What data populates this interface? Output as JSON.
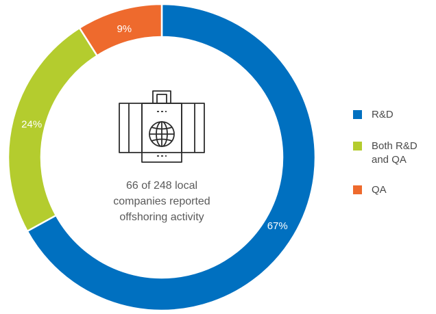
{
  "chart_data": {
    "type": "pie",
    "categories": [
      "R&D",
      "Both R&D and QA",
      "QA"
    ],
    "values": [
      67,
      24,
      9
    ],
    "labels": [
      "67%",
      "24%",
      "9%"
    ],
    "colors": [
      "#0070c0",
      "#b4cc2e",
      "#ee6a2d"
    ],
    "center_text": [
      "66 of 248 local",
      "companies reported",
      "offshoring activity"
    ],
    "center_icon": "briefcase-globe-icon",
    "legend": {
      "placement": "right",
      "items": [
        {
          "label": "R&D",
          "color": "#0070c0"
        },
        {
          "label": "Both R&D\nand QA",
          "color": "#b4cc2e"
        },
        {
          "label": "QA",
          "color": "#ee6a2d"
        }
      ]
    }
  }
}
